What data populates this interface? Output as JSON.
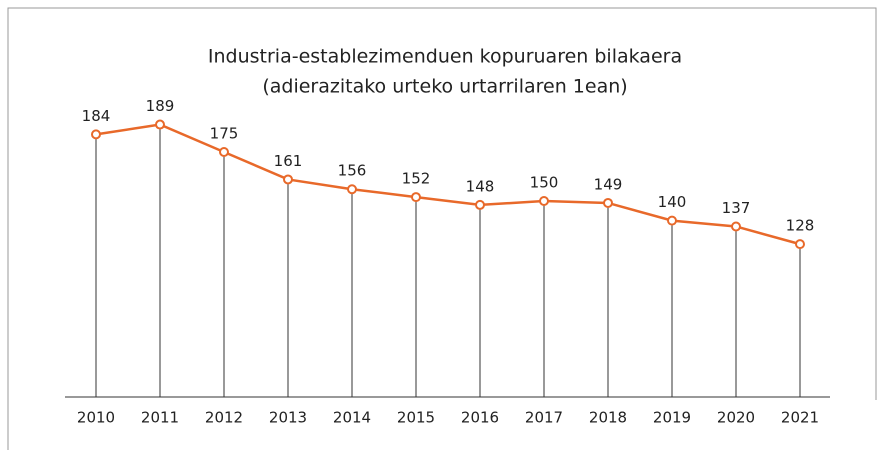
{
  "chart_data": {
    "type": "line",
    "title": "Industria-establezimenduen kopuruaren bilakaera",
    "subtitle": "(adierazitako urteko urtarrilaren 1ean)",
    "categories": [
      "2010",
      "2011",
      "2012",
      "2013",
      "2014",
      "2015",
      "2016",
      "2017",
      "2018",
      "2019",
      "2020",
      "2021"
    ],
    "values": [
      184,
      189,
      175,
      161,
      156,
      152,
      148,
      150,
      149,
      140,
      137,
      128
    ],
    "color": "#e8692a",
    "ylim": [
      50,
      200
    ]
  }
}
